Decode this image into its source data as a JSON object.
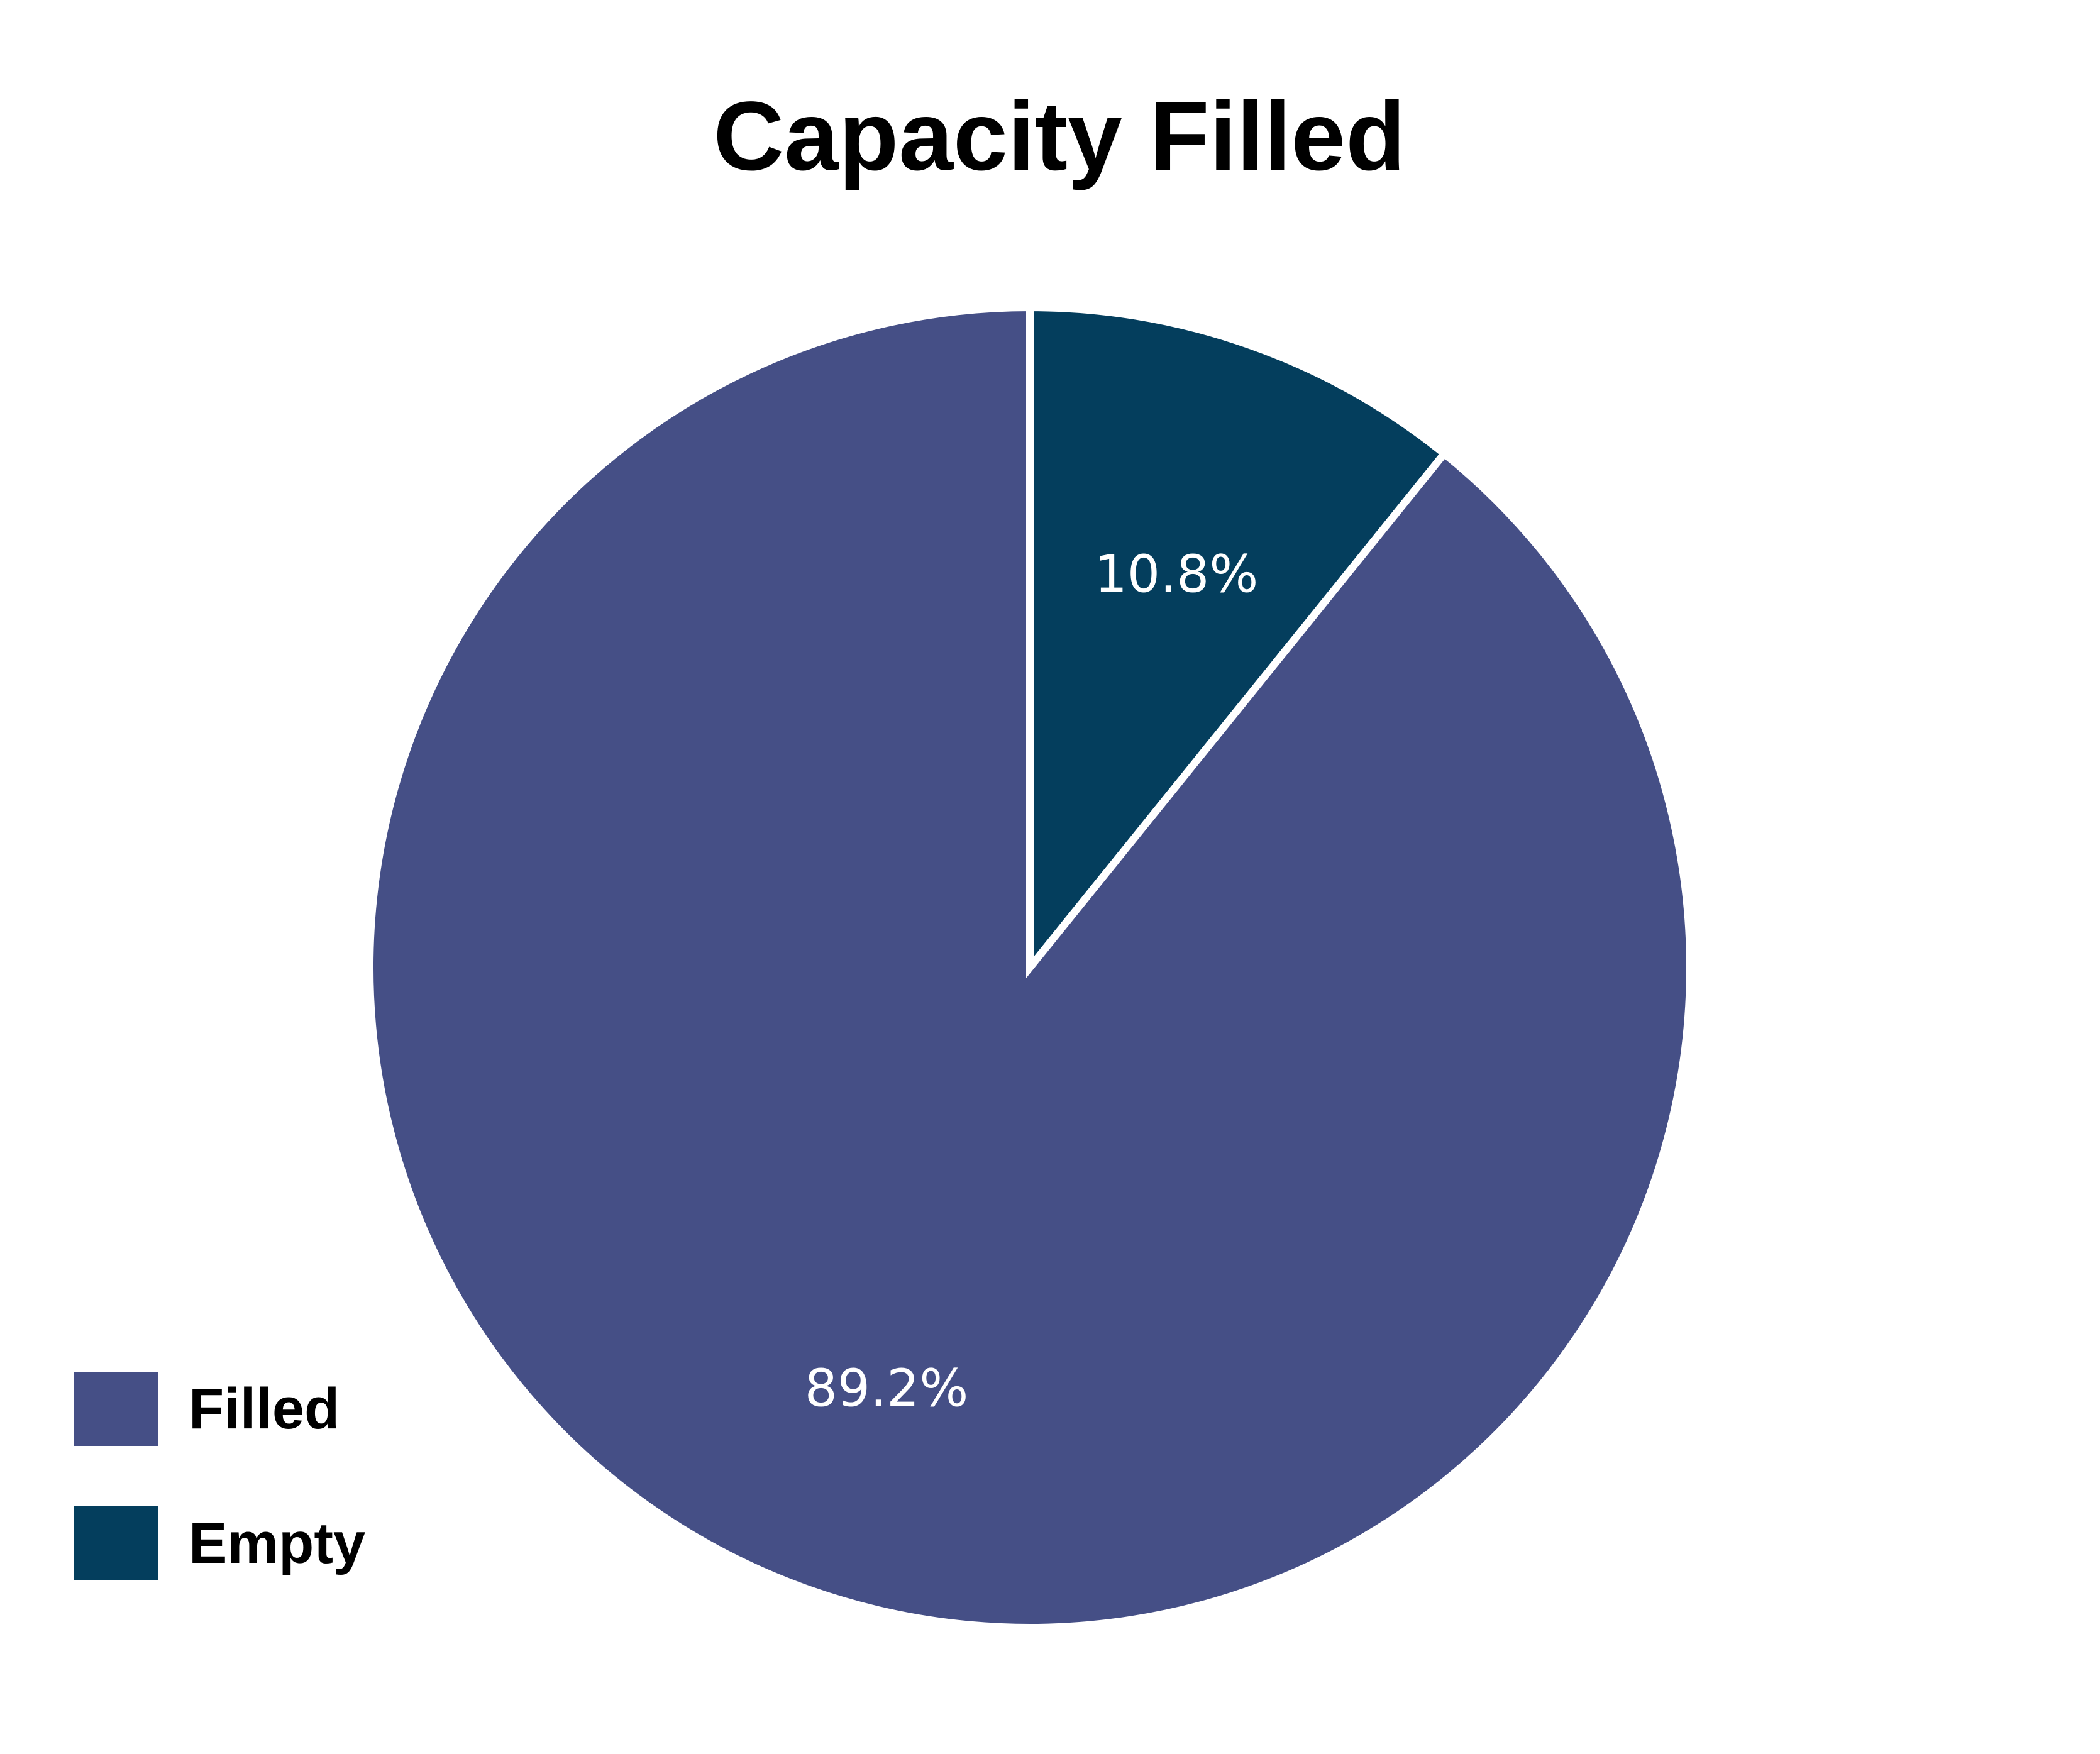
{
  "chart_data": {
    "type": "pie",
    "title": "Capacity Filled",
    "start_angle_deg": 0,
    "direction": "clockwise",
    "slices": [
      {
        "name": "Empty",
        "value": 10.8,
        "label": "10.8%",
        "color": "#043e5d"
      },
      {
        "name": "Filled",
        "value": 89.2,
        "label": "89.2%",
        "color": "#454f86"
      }
    ],
    "legend": {
      "placement": "bottom-left",
      "entries": [
        {
          "name": "Filled",
          "color": "#454f86"
        },
        {
          "name": "Empty",
          "color": "#043e5d"
        }
      ]
    }
  }
}
